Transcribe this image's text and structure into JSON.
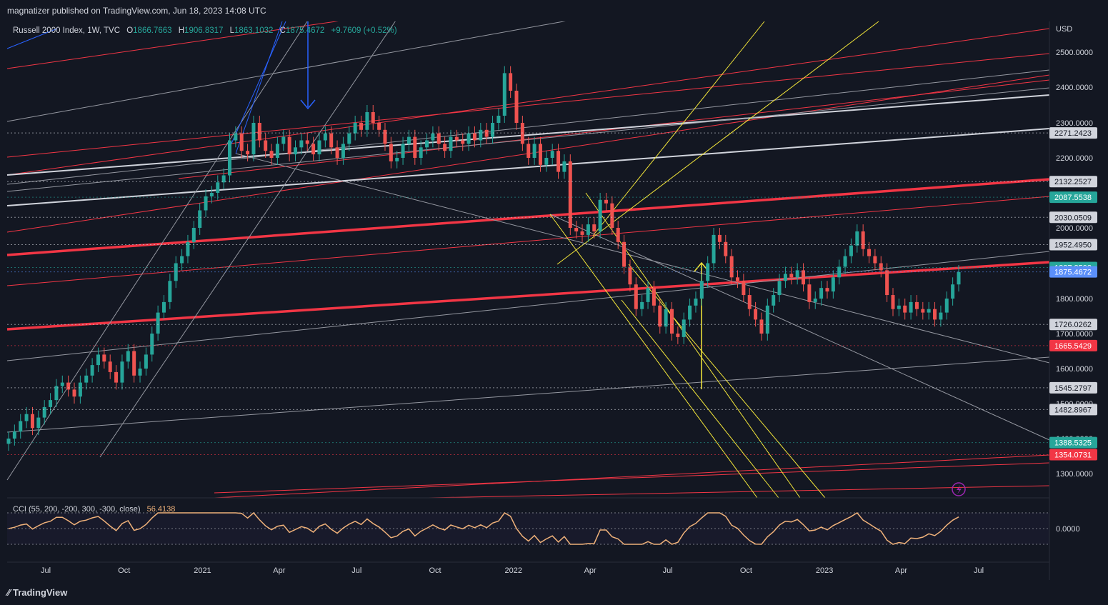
{
  "header": {
    "published": "magnatizer published on TradingView.com, Jun 18, 2023 14:08 UTC"
  },
  "legend": {
    "symbol": "Russell 2000 Index, 1W, TVC",
    "o_label": "O",
    "o_value": "1866.7663",
    "h_label": "H",
    "h_value": "1906.8317",
    "l_label": "L",
    "l_value": "1863.1032",
    "c_label": "C",
    "c_value": "1875.4672",
    "change": "+9.7609 (+0.52%)"
  },
  "cci_legend": {
    "label": "CCI (55, 200, -200, 300, -300, close)",
    "value": "56.4138"
  },
  "footer": {
    "brand": "TradingView"
  },
  "colors": {
    "background": "#131722",
    "up": "#26a69a",
    "down": "#ef5350",
    "red_line": "#f23645",
    "white_line": "#d1d4dc",
    "yellow_line": "#f5e83a",
    "blue_line": "#2962ff",
    "cci_line": "#f0b27a"
  },
  "chart_data": {
    "type": "candlestick",
    "title": "Russell 2000 Index, 1W, TVC",
    "currency": "USD",
    "y_ticks": [
      1300,
      1400,
      1500,
      1600,
      1700,
      1800,
      2000,
      2200,
      2300,
      2400,
      2500
    ],
    "y_tick_labels": [
      "1300.0000",
      "1400.0000",
      "1500.0000",
      "1600.0000",
      "1700.0000",
      "1800.0000",
      "2000.0000",
      "2200.0000",
      "2300.0000",
      "2400.0000",
      "2500.0000"
    ],
    "x_ticks": [
      {
        "label": "Jul",
        "date": "2020-07-01"
      },
      {
        "label": "Oct",
        "date": "2020-10-01"
      },
      {
        "label": "2021",
        "date": "2021-01-01"
      },
      {
        "label": "Apr",
        "date": "2021-04-01"
      },
      {
        "label": "Jul",
        "date": "2021-07-01"
      },
      {
        "label": "Oct",
        "date": "2021-10-01"
      },
      {
        "label": "2022",
        "date": "2022-01-01"
      },
      {
        "label": "Apr",
        "date": "2022-04-01"
      },
      {
        "label": "Jul",
        "date": "2022-07-01"
      },
      {
        "label": "Oct",
        "date": "2022-10-01"
      },
      {
        "label": "2023",
        "date": "2023-01-01"
      },
      {
        "label": "Apr",
        "date": "2023-04-01"
      },
      {
        "label": "Jul",
        "date": "2023-07-01"
      }
    ],
    "price_labels": [
      {
        "value": "2271.2423",
        "price": 2271.24,
        "color": "#d1d4dc"
      },
      {
        "value": "2132.2527",
        "price": 2132.25,
        "color": "#d1d4dc"
      },
      {
        "value": "2087.5538",
        "price": 2087.55,
        "color": "#26a69a"
      },
      {
        "value": "2030.0509",
        "price": 2030.05,
        "color": "#d1d4dc"
      },
      {
        "value": "1952.4950",
        "price": 1952.5,
        "color": "#d1d4dc"
      },
      {
        "value": "1887.8593",
        "price": 1887.86,
        "color": "#26a69a"
      },
      {
        "value": "1875.4672",
        "price": 1875.47,
        "color": "#5b8ff9"
      },
      {
        "value": "1726.0262",
        "price": 1726.03,
        "color": "#d1d4dc"
      },
      {
        "value": "1665.5429",
        "price": 1665.54,
        "color": "#f23645"
      },
      {
        "value": "1545.2797",
        "price": 1545.28,
        "color": "#d1d4dc"
      },
      {
        "value": "1482.8967",
        "price": 1482.9,
        "color": "#d1d4dc"
      },
      {
        "value": "1388.5325",
        "price": 1388.53,
        "color": "#26a69a"
      },
      {
        "value": "1354.0731",
        "price": 1354.07,
        "color": "#f23645"
      }
    ],
    "close_series_weekly": [
      1400,
      1420,
      1450,
      1470,
      1430,
      1460,
      1490,
      1510,
      1550,
      1560,
      1540,
      1520,
      1560,
      1580,
      1610,
      1640,
      1620,
      1590,
      1560,
      1620,
      1650,
      1580,
      1600,
      1640,
      1700,
      1760,
      1790,
      1850,
      1900,
      1920,
      1960,
      2000,
      2050,
      2090,
      2100,
      2130,
      2150,
      2250,
      2270,
      2220,
      2210,
      2300,
      2250,
      2220,
      2200,
      2240,
      2260,
      2210,
      2230,
      2250,
      2240,
      2210,
      2250,
      2270,
      2230,
      2200,
      2240,
      2270,
      2300,
      2280,
      2330,
      2300,
      2280,
      2240,
      2190,
      2200,
      2240,
      2260,
      2200,
      2230,
      2250,
      2270,
      2240,
      2220,
      2260,
      2250,
      2240,
      2270,
      2250,
      2280,
      2260,
      2300,
      2320,
      2440,
      2390,
      2300,
      2240,
      2200,
      2240,
      2180,
      2200,
      2220,
      2160,
      2190,
      2000,
      1990,
      1980,
      2010,
      1990,
      2080,
      2070,
      2000,
      1960,
      1890,
      1840,
      1770,
      1790,
      1830,
      1780,
      1720,
      1770,
      1700,
      1690,
      1740,
      1780,
      1800,
      1850,
      1900,
      1980,
      1960,
      1920,
      1860,
      1850,
      1810,
      1770,
      1740,
      1700,
      1780,
      1810,
      1850,
      1870,
      1860,
      1880,
      1840,
      1790,
      1800,
      1830,
      1820,
      1860,
      1890,
      1920,
      1950,
      1990,
      1940,
      1920,
      1900,
      1880,
      1810,
      1770,
      1780,
      1760,
      1790,
      1770,
      1760,
      1770,
      1740,
      1760,
      1800,
      1840,
      1875
    ],
    "cci": {
      "value": 56.4138,
      "levels": [
        300,
        0,
        -300
      ],
      "zero_label": "0.0000"
    }
  }
}
